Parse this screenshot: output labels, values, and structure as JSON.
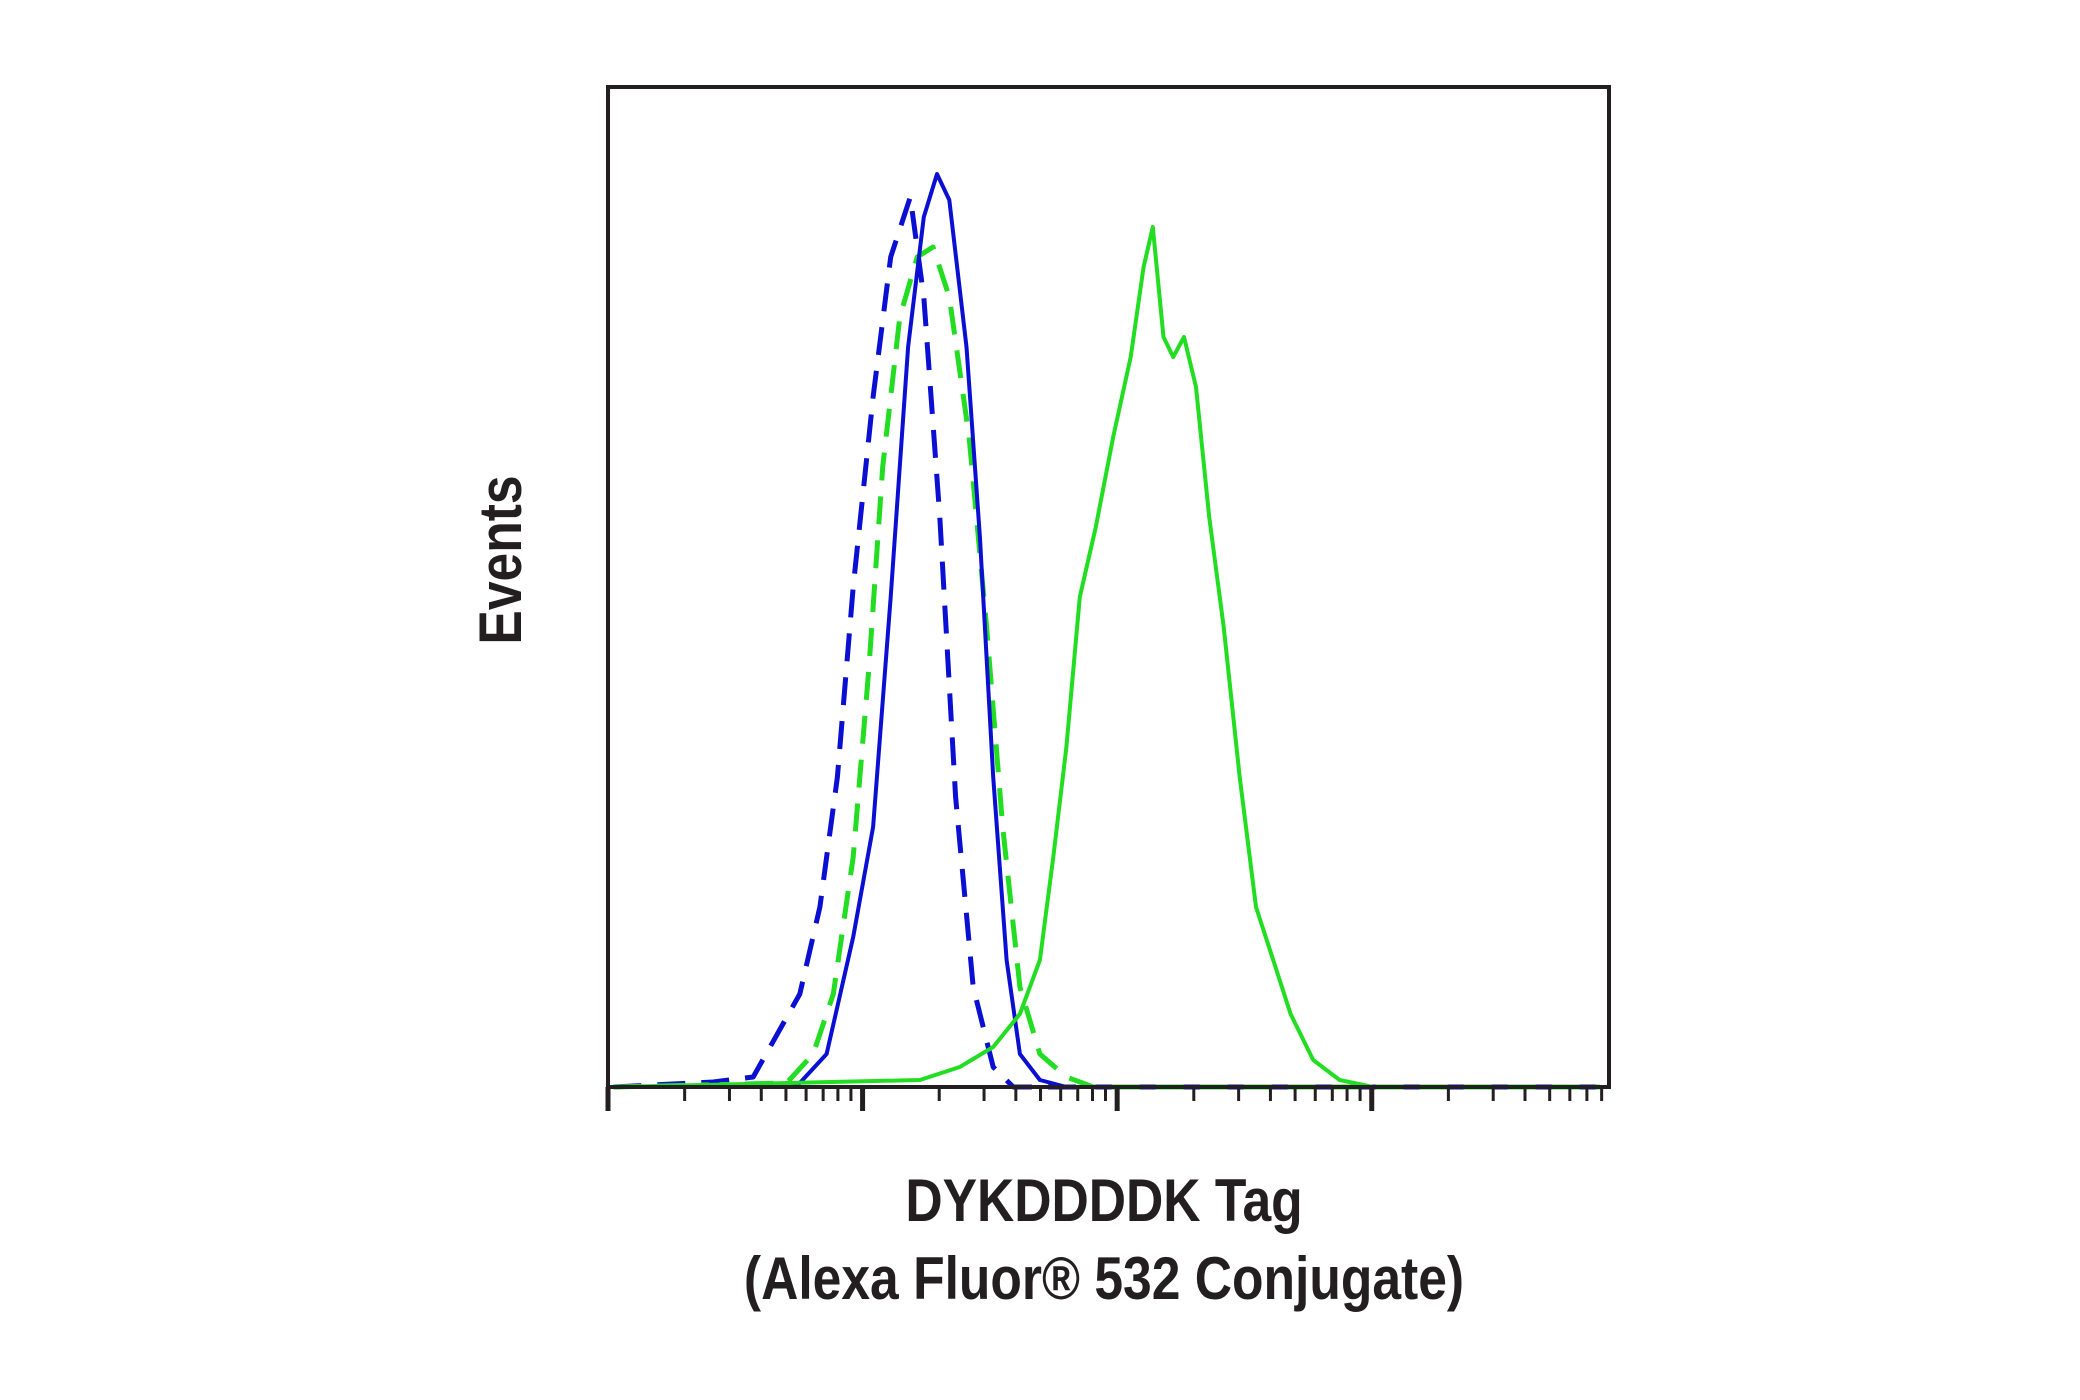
{
  "chart_data": {
    "type": "line",
    "y_label": "Events",
    "x_label": [
      "DYKDDDDK Tag",
      "(Alexa Fluor® 532 Conjugate)"
    ],
    "xscale": "log",
    "xlim": [
      1,
      8550
    ],
    "ylim": [
      0,
      100
    ],
    "xticks": [
      1,
      10,
      100,
      1000
    ],
    "xminorticks": [
      2,
      3,
      4,
      5,
      6,
      7,
      8,
      9,
      20,
      30,
      40,
      50,
      60,
      70,
      80,
      90,
      200,
      300,
      400,
      500,
      600,
      700,
      800,
      900,
      2000,
      3000,
      4000,
      5000,
      6000,
      7000,
      8000
    ],
    "series": [
      {
        "color": "#0a0fd2",
        "linestyle": "dashed",
        "x": [
          1.05,
          2.59,
          3.72,
          5.67,
          6.8,
          7.96,
          9.19,
          11.0,
          12.9,
          15.4,
          17.4,
          20.1,
          23.2,
          27.2,
          32.6,
          39.1,
          7850
        ],
        "values": [
          0,
          0.5,
          1,
          9.3,
          18,
          31,
          50,
          69,
          83,
          89,
          79,
          57,
          29,
          10,
          2,
          0,
          0
        ]
      },
      {
        "color": "#22dd22",
        "linestyle": "dashed",
        "x": [
          1.05,
          5.03,
          6.4,
          7.67,
          9.19,
          10.6,
          12.0,
          14.0,
          16.4,
          18.9,
          21.9,
          26.2,
          30.7,
          35.5,
          41.5,
          49.7,
          63.2,
          80.5,
          7850
        ],
        "values": [
          0,
          0.4,
          3.3,
          9.3,
          23,
          42,
          62,
          77,
          83,
          84,
          79,
          65,
          46,
          26,
          10,
          3.3,
          1,
          0,
          0
        ]
      },
      {
        "color": "#0a0fd2",
        "linestyle": "solid",
        "x": [
          1.05,
          2.44,
          2.59,
          2.92,
          5.67,
          7.22,
          9.19,
          11.0,
          12.9,
          15.1,
          17.4,
          19.6,
          21.9,
          25.6,
          28.9,
          32.6,
          36.8,
          41.5,
          49.7,
          63.2,
          7850
        ],
        "values": [
          0,
          0,
          0.5,
          0,
          0.4,
          3.3,
          15,
          26,
          49,
          74,
          87,
          91.3,
          88.7,
          74,
          55,
          31,
          12.7,
          3.3,
          0.7,
          0,
          0
        ]
      },
      {
        "color": "#22dd22",
        "linestyle": "solid",
        "x": [
          1.05,
          16.8,
          24.1,
          32.6,
          41.5,
          49.7,
          56.1,
          63.2,
          71.3,
          82.4,
          96.5,
          113,
          127,
          138,
          152,
          166,
          183,
          204,
          230,
          262,
          303,
          351,
          410,
          480,
          589,
          748,
          1012,
          7850
        ],
        "values": [
          0,
          0.7,
          2,
          4,
          7.3,
          12.7,
          23,
          34,
          49,
          56,
          65,
          73,
          82,
          86,
          75,
          73,
          75,
          70,
          57,
          46,
          31,
          18,
          12.7,
          7.3,
          2.7,
          0.7,
          0,
          0
        ]
      }
    ]
  }
}
